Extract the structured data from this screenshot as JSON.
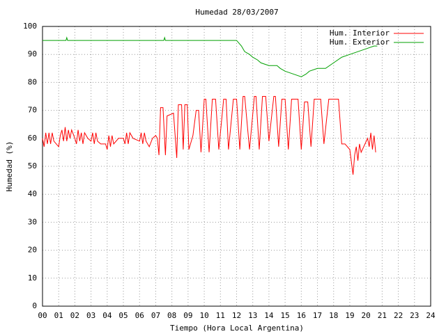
{
  "chart_data": {
    "type": "line",
    "title": "Humedad 28/03/2007",
    "xlabel": "Tiempo (Hora Local Argentina)",
    "ylabel": "Humedad (%)",
    "xlim": [
      0,
      24
    ],
    "ylim": [
      0,
      100
    ],
    "grid": true,
    "legend": "top-right",
    "xticks": [
      {
        "value": 0,
        "label": "00"
      },
      {
        "value": 1,
        "label": "01"
      },
      {
        "value": 2,
        "label": "02"
      },
      {
        "value": 3,
        "label": "03"
      },
      {
        "value": 4,
        "label": "04"
      },
      {
        "value": 5,
        "label": "05"
      },
      {
        "value": 6,
        "label": "06"
      },
      {
        "value": 7,
        "label": "07"
      },
      {
        "value": 8,
        "label": "08"
      },
      {
        "value": 9,
        "label": "09"
      },
      10,
      11,
      12,
      13,
      14,
      15,
      16,
      17,
      18,
      19,
      20,
      21,
      22,
      23,
      24
    ],
    "yticks": [
      0,
      10,
      20,
      30,
      40,
      50,
      60,
      70,
      80,
      90,
      100
    ],
    "series": [
      {
        "name": "Hum. Interior",
        "color": "#ff0000",
        "x": [
          0,
          0.1,
          0.2,
          0.3,
          0.4,
          0.5,
          0.6,
          0.7,
          1.0,
          1.1,
          1.2,
          1.3,
          1.4,
          1.5,
          1.6,
          1.7,
          1.8,
          2.0,
          2.1,
          2.2,
          2.3,
          2.4,
          2.5,
          2.6,
          2.8,
          3.0,
          3.1,
          3.2,
          3.3,
          3.4,
          3.6,
          3.9,
          4.0,
          4.1,
          4.2,
          4.3,
          4.4,
          4.7,
          5.0,
          5.1,
          5.2,
          5.3,
          5.4,
          5.6,
          6.0,
          6.1,
          6.2,
          6.3,
          6.4,
          6.6,
          6.8,
          7.0,
          7.1,
          7.2,
          7.3,
          7.45,
          7.6,
          7.7,
          8.1,
          8.3,
          8.4,
          8.6,
          8.7,
          8.8,
          8.95,
          9.05,
          9.3,
          9.5,
          9.65,
          9.8,
          10.0,
          10.1,
          10.3,
          10.5,
          10.7,
          10.9,
          11.2,
          11.35,
          11.5,
          11.8,
          12.0,
          12.2,
          12.4,
          12.5,
          12.8,
          13.1,
          13.2,
          13.4,
          13.6,
          13.8,
          14.0,
          14.3,
          14.4,
          14.6,
          14.8,
          15.0,
          15.2,
          15.4,
          15.8,
          16.0,
          16.2,
          16.4,
          16.6,
          16.8,
          17.2,
          17.4,
          17.7,
          18.3,
          18.5,
          18.7,
          19.0,
          19.2,
          19.3,
          19.4,
          19.5,
          19.6,
          19.7,
          20.1,
          20.2,
          20.3,
          20.4,
          20.5,
          20.6
        ],
        "values": [
          60,
          57,
          62,
          58,
          62,
          58,
          62,
          59,
          57,
          61,
          63,
          59,
          64,
          59,
          63,
          60,
          63,
          60,
          58,
          63,
          59,
          62,
          58,
          62,
          60,
          59,
          62,
          58,
          62,
          59,
          58,
          58,
          56,
          61,
          57,
          61,
          58,
          60,
          60,
          58,
          62,
          58,
          62,
          60,
          59,
          62,
          58,
          62,
          59,
          57,
          60,
          61,
          60,
          54,
          71,
          71,
          54,
          68,
          69,
          53,
          72,
          72,
          56,
          72,
          72,
          56,
          61,
          70,
          70,
          55,
          74,
          74,
          55,
          74,
          74,
          56,
          74,
          74,
          56,
          74,
          74,
          56,
          75,
          75,
          56,
          75,
          75,
          56,
          75,
          75,
          59,
          75,
          75,
          57,
          74,
          74,
          56,
          74,
          74,
          56,
          73,
          73,
          57,
          74,
          74,
          58,
          74,
          74,
          58,
          58,
          56,
          47,
          54,
          57,
          52,
          58,
          55,
          60,
          57,
          62,
          56,
          61,
          55
        ]
      },
      {
        "name": "Hum. Exterior",
        "color": "#00a000",
        "x": [
          0,
          1.45,
          1.5,
          1.55,
          7.5,
          7.55,
          7.6,
          12.0,
          12.3,
          12.5,
          12.8,
          13.0,
          13.3,
          13.5,
          14.0,
          14.5,
          14.7,
          15.0,
          15.5,
          16.0,
          16.3,
          16.5,
          17.0,
          17.5,
          18.0,
          18.5,
          19.0,
          19.5,
          20.0,
          20.5,
          20.7
        ],
        "values": [
          95,
          95,
          96,
          95,
          95,
          96,
          95,
          95,
          93,
          91,
          90,
          89,
          88,
          87,
          86,
          86,
          85,
          84,
          83,
          82,
          83,
          84,
          85,
          85,
          87,
          89,
          90,
          91,
          92,
          93,
          93
        ]
      }
    ]
  }
}
